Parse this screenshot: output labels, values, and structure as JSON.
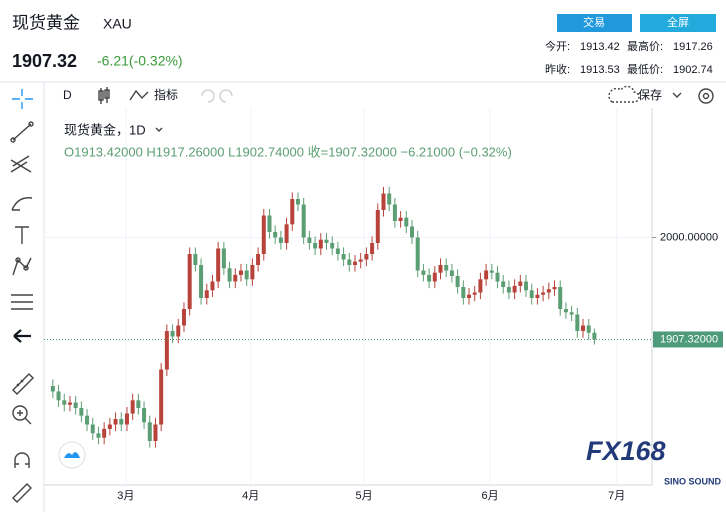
{
  "header": {
    "title": "现货黄金",
    "symbol": "XAU",
    "price": "1907.32",
    "change": "-6.21(-0.32%)",
    "buttons": [
      "交易",
      "全屏"
    ],
    "stats": [
      [
        "今开:",
        "1913.42",
        "最高价:",
        "1917.26"
      ],
      [
        "昨收:",
        "1913.53",
        "最低价:",
        "1902.74"
      ]
    ]
  },
  "toolbar": {
    "interval": "D",
    "indicators": "指标",
    "save": "保存"
  },
  "legend": {
    "name": "现货黄金，1D",
    "ohlc": "O1913.42000  H1917.26000  L1902.74000  收=1907.32000  −6.21000 (−0.32%)"
  },
  "watermark": {
    "brand": "FX168",
    "sub": "SINO SOUND"
  },
  "chart_data": {
    "type": "candlestick",
    "up_color": "#b8433a",
    "down_color": "#5b9e73",
    "xlim": [
      -0.5,
      105.1
    ],
    "ylim": [
      1775,
      2125
    ],
    "xticks": [
      {
        "value": 12.8,
        "label": "3月"
      },
      {
        "value": 34.7,
        "label": "4月"
      },
      {
        "value": 54.6,
        "label": "5月"
      },
      {
        "value": 76.7,
        "label": "6月"
      },
      {
        "value": 98.9,
        "label": "7月"
      }
    ],
    "yticks": [
      {
        "value": 2000,
        "label": "2000.00000"
      }
    ],
    "price_line": {
      "value": 1907.32,
      "label": "1907.32000",
      "color": "#4e9b7b"
    },
    "open": [
      1865,
      1860,
      1852,
      1848,
      1850,
      1845,
      1838,
      1830,
      1822,
      1818,
      1826,
      1830,
      1835,
      1830,
      1840,
      1852,
      1845,
      1832,
      1815,
      1830,
      1880,
      1915,
      1910,
      1920,
      1935,
      1985,
      1975,
      1945,
      1952,
      1960,
      1990,
      1972,
      1960,
      1966,
      1970,
      1962,
      1975,
      1985,
      2020,
      2005,
      2000,
      1995,
      2012,
      2035,
      2030,
      2000,
      1995,
      1990,
      1998,
      1995,
      1990,
      1985,
      1980,
      1975,
      1978,
      1980,
      1985,
      1995,
      2025,
      2040,
      2030,
      2015,
      2018,
      2010,
      2000,
      1970,
      1966,
      1960,
      1968,
      1975,
      1970,
      1965,
      1955,
      1945,
      1948,
      1950,
      1962,
      1970,
      1968,
      1960,
      1955,
      1950,
      1956,
      1960,
      1952,
      1945,
      1948,
      1950,
      1953,
      1955,
      1935,
      1932,
      1930,
      1915,
      1920,
      1913.42
    ],
    "high": [
      1871,
      1866,
      1858,
      1856,
      1856,
      1851,
      1844,
      1836,
      1828,
      1832,
      1836,
      1841,
      1841,
      1846,
      1858,
      1858,
      1851,
      1838,
      1836,
      1886,
      1921,
      1921,
      1926,
      1941,
      1991,
      1991,
      1981,
      1958,
      1966,
      1996,
      1996,
      1978,
      1972,
      1976,
      1976,
      1981,
      1991,
      2026,
      2026,
      2011,
      2006,
      2018,
      2041,
      2041,
      2036,
      2006,
      2001,
      2004,
      2004,
      2001,
      1996,
      1991,
      1986,
      1984,
      1986,
      1991,
      2001,
      2031,
      2046,
      2046,
      2036,
      2024,
      2024,
      2016,
      2006,
      1976,
      1972,
      1974,
      1981,
      1981,
      1976,
      1971,
      1961,
      1954,
      1956,
      1968,
      1976,
      1976,
      1974,
      1966,
      1961,
      1962,
      1966,
      1966,
      1958,
      1954,
      1956,
      1959,
      1961,
      1961,
      1941,
      1938,
      1936,
      1926,
      1926,
      1917.26
    ],
    "low": [
      1854,
      1846,
      1842,
      1842,
      1839,
      1832,
      1824,
      1816,
      1812,
      1812,
      1820,
      1824,
      1824,
      1824,
      1834,
      1839,
      1826,
      1809,
      1809,
      1824,
      1874,
      1904,
      1904,
      1914,
      1929,
      1969,
      1939,
      1939,
      1946,
      1954,
      1966,
      1954,
      1954,
      1960,
      1956,
      1956,
      1969,
      1979,
      1999,
      1994,
      1989,
      1989,
      2006,
      2024,
      1994,
      1989,
      1984,
      1984,
      1989,
      1984,
      1979,
      1974,
      1969,
      1969,
      1972,
      1974,
      1979,
      1989,
      2019,
      2024,
      2009,
      2009,
      2004,
      1994,
      1964,
      1960,
      1954,
      1954,
      1962,
      1964,
      1959,
      1949,
      1939,
      1939,
      1942,
      1944,
      1956,
      1962,
      1954,
      1949,
      1944,
      1944,
      1950,
      1946,
      1939,
      1939,
      1942,
      1944,
      1947,
      1929,
      1926,
      1924,
      1909,
      1909,
      1907,
      1902.74
    ],
    "close": [
      1860,
      1852,
      1848,
      1850,
      1845,
      1838,
      1830,
      1822,
      1818,
      1826,
      1830,
      1835,
      1830,
      1840,
      1852,
      1845,
      1832,
      1815,
      1830,
      1880,
      1915,
      1910,
      1920,
      1935,
      1985,
      1975,
      1945,
      1952,
      1960,
      1990,
      1972,
      1960,
      1966,
      1970,
      1962,
      1975,
      1985,
      2020,
      2005,
      2000,
      1995,
      2012,
      2035,
      2030,
      2000,
      1995,
      1990,
      1998,
      1995,
      1990,
      1985,
      1980,
      1975,
      1978,
      1980,
      1985,
      1995,
      2025,
      2040,
      2030,
      2015,
      2018,
      2010,
      2000,
      1970,
      1966,
      1960,
      1968,
      1975,
      1970,
      1965,
      1955,
      1945,
      1948,
      1950,
      1962,
      1970,
      1968,
      1960,
      1955,
      1950,
      1956,
      1960,
      1952,
      1945,
      1948,
      1950,
      1953,
      1955,
      1935,
      1932,
      1930,
      1915,
      1920,
      1913.42,
      1907.32
    ]
  }
}
